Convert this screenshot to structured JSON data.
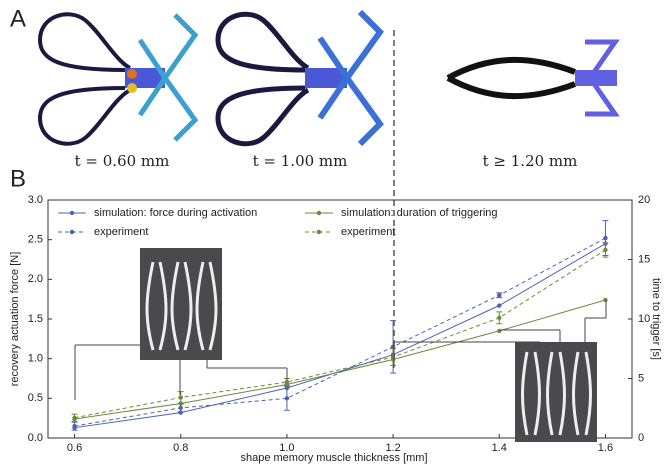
{
  "figure": {
    "panel_a_label": "A",
    "panel_b_label": "B",
    "captions": [
      "t = 0.60 mm",
      "t = 1.00 mm",
      "t ≥ 1.20 mm"
    ]
  },
  "chart_data": {
    "type": "line",
    "x_label": "shape memory muscle thickness [mm]",
    "y_label": "recovery actuation force [N]",
    "y2_label": "time to trigger [s]",
    "x": [
      0.6,
      0.8,
      1.0,
      1.2,
      1.4,
      1.6
    ],
    "xlim": [
      0.55,
      1.65
    ],
    "xticks": [
      0.6,
      0.8,
      {
        "value": 1.0,
        "label": "1.0"
      },
      1.2,
      1.4,
      1.6
    ],
    "ylim": [
      0,
      3
    ],
    "yticks": [
      {
        "value": 0,
        "label": "0.0"
      },
      0.5,
      {
        "value": 1,
        "label": "1.0"
      },
      1.5,
      {
        "value": 2,
        "label": "2.0"
      },
      2.5,
      {
        "value": 3,
        "label": "3.0"
      }
    ],
    "y2lim": [
      0,
      20
    ],
    "y2ticks": [
      0,
      5,
      10,
      15,
      20
    ],
    "y_label_color": "#3c5aa6",
    "y2_label_color": "#5f8a2a",
    "series": [
      {
        "name": "simulation: force during activation",
        "color": "#4a64b0",
        "dashed": false,
        "values": [
          0.13,
          0.32,
          0.63,
          1.05,
          1.67,
          2.45
        ]
      },
      {
        "name": "experiment",
        "color": "#4a64b0",
        "dashed": true,
        "values": [
          0.15,
          0.38,
          0.5,
          1.15,
          1.8,
          2.52
        ],
        "errors": [
          0.05,
          0.05,
          0.15,
          0.33,
          0.03,
          0.22
        ]
      },
      {
        "name": "simulation: duration of triggering",
        "color": "#6b8a3a",
        "dashed": false,
        "axis": "y2",
        "values": [
          1.6,
          2.9,
          4.5,
          6.6,
          9.0,
          11.6
        ]
      },
      {
        "name": "experiment",
        "color": "#6b8a3a",
        "dashed": true,
        "axis": "y2",
        "values": [
          1.7,
          3.4,
          4.7,
          6.8,
          10.1,
          15.8
        ],
        "errors": [
          0.3,
          0.5,
          0.3,
          0.7,
          0.5,
          0.6
        ]
      }
    ]
  }
}
